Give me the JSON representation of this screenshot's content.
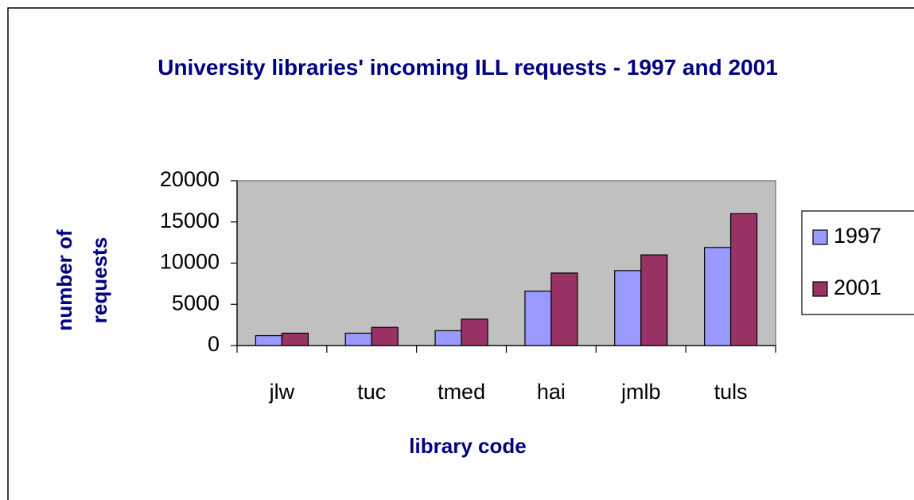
{
  "chart_data": {
    "type": "bar",
    "title": "University libraries' incoming ILL requests  - 1997 and 2001",
    "x_label": "library code",
    "y_label": "number of requests",
    "categories": [
      "jlw",
      "tuc",
      "tmed",
      "hai",
      "jmlb",
      "tuls"
    ],
    "series": [
      {
        "name": "1997",
        "color": "#9999ff",
        "values": [
          1200,
          1500,
          1800,
          6600,
          9100,
          11900
        ]
      },
      {
        "name": "2001",
        "color": "#993366",
        "values": [
          1500,
          2200,
          3200,
          8800,
          11000,
          16000
        ]
      }
    ],
    "ylim": [
      0,
      20000
    ],
    "yticks": [
      0,
      5000,
      10000,
      15000,
      20000
    ],
    "plot_background": "#c0c0c0",
    "legend": "right"
  }
}
